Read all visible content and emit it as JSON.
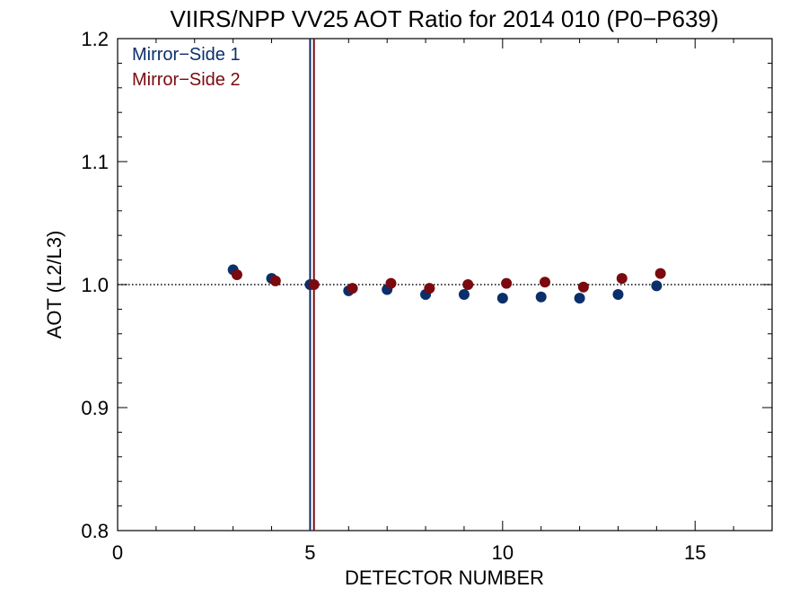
{
  "chart_data": {
    "type": "scatter",
    "title": "VIIRS/NPP VV25 AOT Ratio for 2014 010 (P0−P639)",
    "xlabel": "DETECTOR NUMBER",
    "ylabel": "AOT (L2/L3)",
    "xlim": [
      0,
      17
    ],
    "ylim": [
      0.8,
      1.2
    ],
    "x_ticks": [
      0,
      5,
      10,
      15
    ],
    "x_tick_labels": [
      "0",
      "5",
      "10",
      "15"
    ],
    "y_ticks": [
      0.8,
      0.9,
      1.0,
      1.1,
      1.2
    ],
    "y_tick_labels": [
      "0.8",
      "0.9",
      "1.0",
      "1.1",
      "1.2"
    ],
    "reference_line": 1.0,
    "legend_position": "top-left",
    "series": [
      {
        "name": "Mirror−Side 1",
        "color": "#0b2f6b",
        "vline_x": 5.0,
        "x": [
          3,
          4,
          5,
          6,
          7,
          8,
          9,
          10,
          11,
          12,
          13,
          14
        ],
        "y": [
          1.012,
          1.005,
          1.0,
          0.995,
          0.996,
          0.992,
          0.992,
          0.989,
          0.99,
          0.989,
          0.992,
          0.999
        ]
      },
      {
        "name": "Mirror−Side 2",
        "color": "#7a0a0f",
        "vline_x": 5.1,
        "x": [
          3.1,
          4.1,
          5.1,
          6.1,
          7.1,
          8.1,
          9.1,
          10.1,
          11.1,
          12.1,
          13.1,
          14.1
        ],
        "y": [
          1.008,
          1.003,
          1.0,
          0.997,
          1.001,
          0.997,
          1.0,
          1.001,
          1.002,
          0.998,
          1.005,
          1.009
        ]
      }
    ]
  }
}
